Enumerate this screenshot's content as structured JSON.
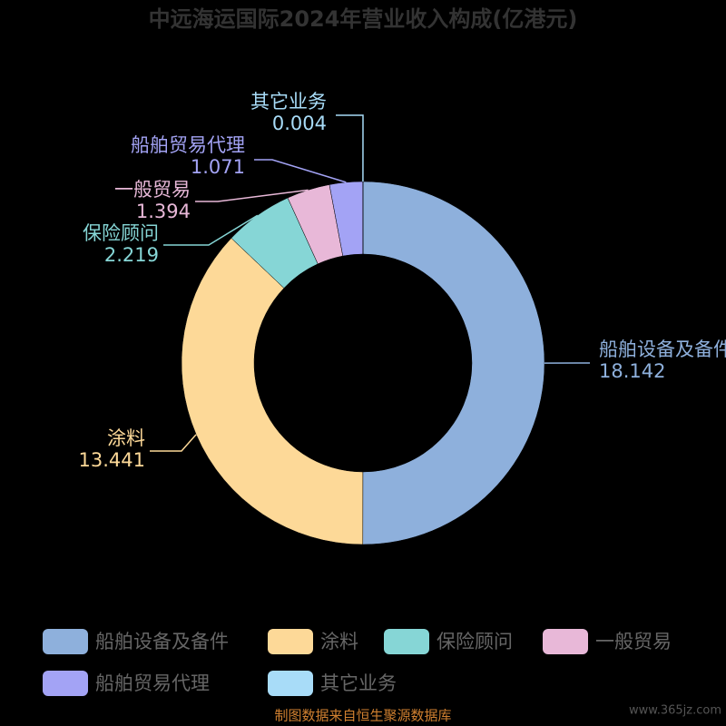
{
  "chart_data": {
    "type": "pie",
    "title": "中远海运国际2024年营业收入构成(亿港元)",
    "categories": [
      "船舶设备及备件",
      "涂料",
      "保险顾问",
      "一般贸易",
      "船舶贸易代理",
      "其它业务"
    ],
    "values": [
      18.142,
      13.441,
      2.219,
      1.394,
      1.071,
      0.004
    ],
    "colors": [
      "#8eb0dc",
      "#fdd998",
      "#86d6d6",
      "#e8b8d8",
      "#a3a3f5",
      "#a8dcf8"
    ],
    "legend": "bottom",
    "source": "制图数据来自恒生聚源数据库",
    "watermark": "www.365jz.com"
  }
}
